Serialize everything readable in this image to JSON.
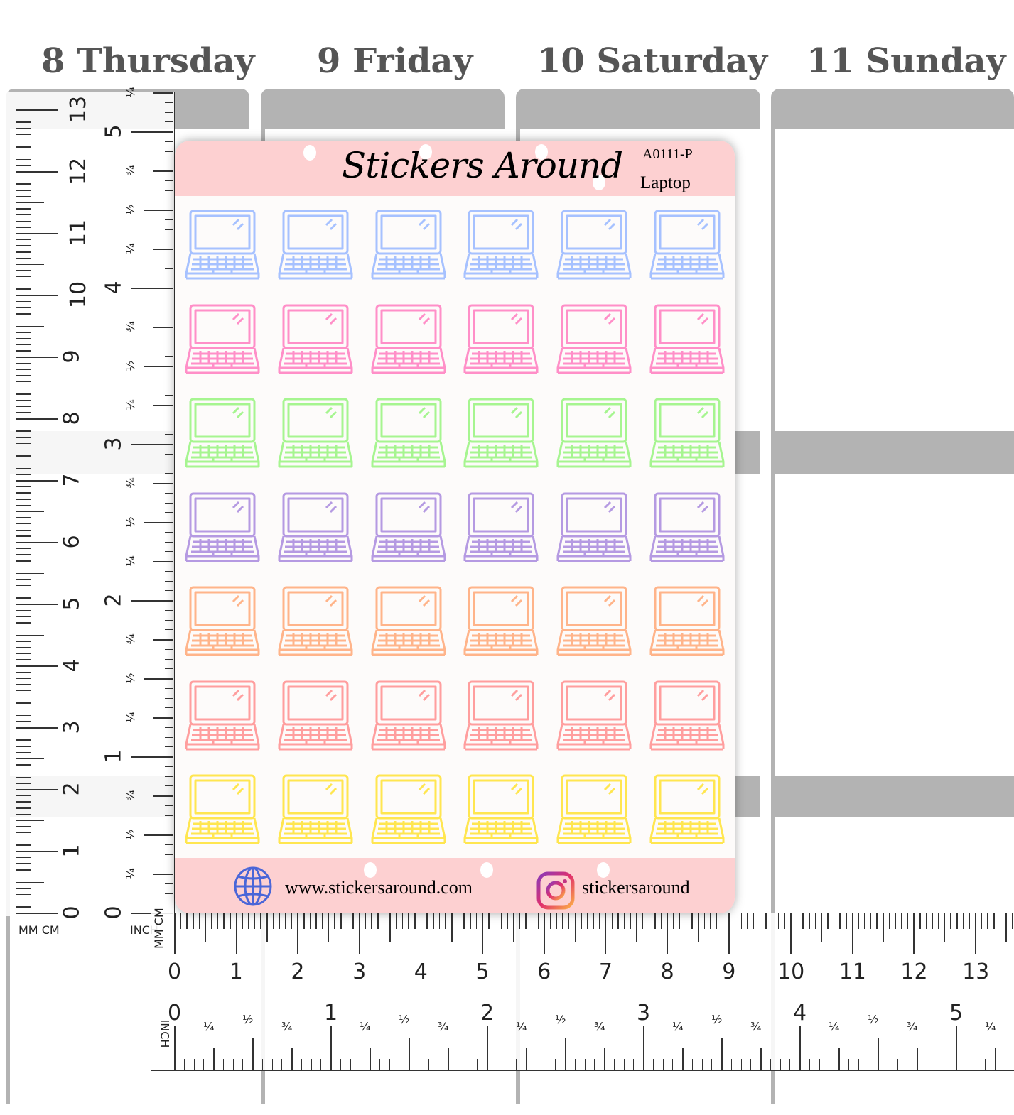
{
  "days": [
    "8 Thursday",
    "9 Friday",
    "10 Saturday",
    "11 Sunday"
  ],
  "sheet": {
    "brand": "Stickers Around",
    "code": "A0111-P",
    "name": "Laptop",
    "website": "www.stickersaround.com",
    "instagram": "stickersaround",
    "header_color": "#fdd0d1",
    "icon": "laptop-icon",
    "row_colors": [
      "#a6c1ff",
      "#ff8fc8",
      "#a6f590",
      "#b59ae2",
      "#ffb48a",
      "#ff9e9e",
      "#ffe650"
    ],
    "columns": 6
  },
  "ruler": {
    "unit_left": "MM CM",
    "unit_inch": "INCH",
    "unit_bottom": "MM CM",
    "cm_labels": [
      "0",
      "1",
      "2",
      "3",
      "4",
      "5",
      "6",
      "7",
      "8",
      "9",
      "10",
      "11",
      "12",
      "13"
    ],
    "inch_labels": [
      "0",
      "1",
      "2",
      "3",
      "4",
      "5"
    ],
    "fraction_labels": [
      "¼",
      "½",
      "¾"
    ]
  }
}
